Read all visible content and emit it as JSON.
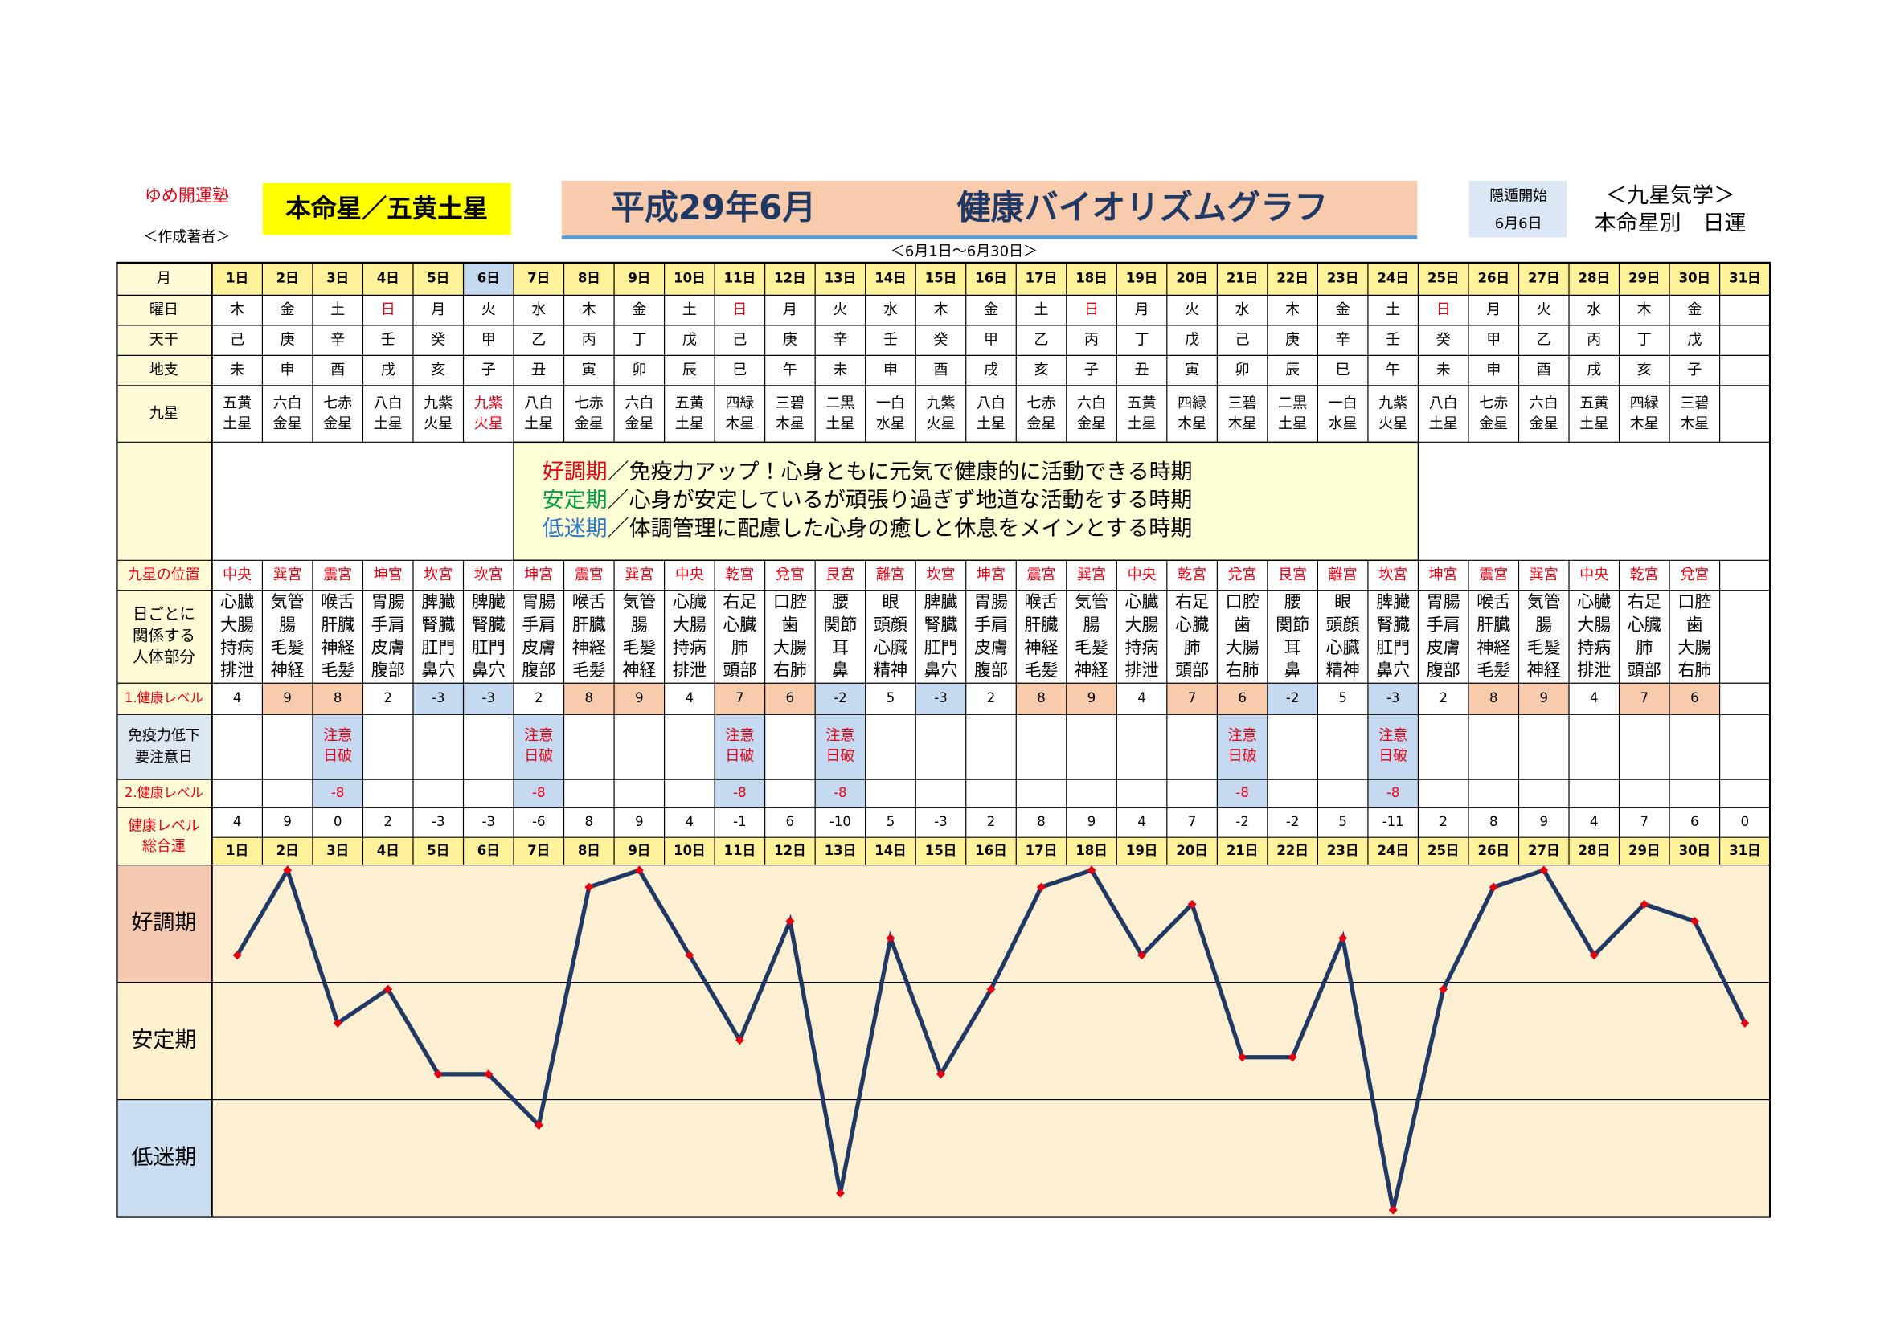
{
  "header": {
    "school": "ゆめ開運塾",
    "author": "＜作成著者＞",
    "honmei": "本命星／五黄土星",
    "title_date": "平成29年6月",
    "title": "健康バイオリズムグラフ",
    "period": "＜6月1日～6月30日＞",
    "inton_label": "隠遁開始",
    "inton_date": "6月6日",
    "kyusei_title": "＜九星気学＞",
    "kyusei_sub": "本命星別　日運"
  },
  "table": {
    "row_labels": {
      "month": "月",
      "weekday": "曜日",
      "kan": "天干",
      "shi": "地支",
      "star": "九星",
      "position": "九星の位置",
      "body": [
        "日ごとに",
        "関係する",
        "人体部分"
      ],
      "level1": "1.健康レベル",
      "immunity": [
        "免疫力低下",
        "要注意日"
      ],
      "level2": "2.健康レベル",
      "total": [
        "健康レベル",
        "総合運"
      ]
    },
    "days": [
      "1日",
      "2日",
      "3日",
      "4日",
      "5日",
      "6日",
      "7日",
      "8日",
      "9日",
      "10日",
      "11日",
      "12日",
      "13日",
      "14日",
      "15日",
      "16日",
      "17日",
      "18日",
      "19日",
      "20日",
      "21日",
      "22日",
      "23日",
      "24日",
      "25日",
      "26日",
      "27日",
      "28日",
      "29日",
      "30日",
      "31日"
    ],
    "highlight_day": 5,
    "weekdays": [
      "木",
      "金",
      "土",
      "日",
      "月",
      "火",
      "水",
      "木",
      "金",
      "土",
      "日",
      "月",
      "火",
      "水",
      "木",
      "金",
      "土",
      "日",
      "月",
      "火",
      "水",
      "木",
      "金",
      "土",
      "日",
      "月",
      "火",
      "水",
      "木",
      "金"
    ],
    "red_weekdays": [
      3,
      10,
      17,
      24
    ],
    "kan": [
      "己",
      "庚",
      "辛",
      "壬",
      "癸",
      "甲",
      "乙",
      "丙",
      "丁",
      "戊",
      "己",
      "庚",
      "辛",
      "壬",
      "癸",
      "甲",
      "乙",
      "丙",
      "丁",
      "戊",
      "己",
      "庚",
      "辛",
      "壬",
      "癸",
      "甲",
      "乙",
      "丙",
      "丁",
      "戊"
    ],
    "shi": [
      "未",
      "申",
      "酉",
      "戌",
      "亥",
      "子",
      "丑",
      "寅",
      "卯",
      "辰",
      "巳",
      "午",
      "未",
      "申",
      "酉",
      "戌",
      "亥",
      "子",
      "丑",
      "寅",
      "卯",
      "辰",
      "巳",
      "午",
      "未",
      "申",
      "酉",
      "戌",
      "亥",
      "子"
    ],
    "star": [
      [
        "五黄",
        "土星"
      ],
      [
        "六白",
        "金星"
      ],
      [
        "七赤",
        "金星"
      ],
      [
        "八白",
        "土星"
      ],
      [
        "九紫",
        "火星"
      ],
      [
        "九紫",
        "火星"
      ],
      [
        "八白",
        "土星"
      ],
      [
        "七赤",
        "金星"
      ],
      [
        "六白",
        "金星"
      ],
      [
        "五黄",
        "土星"
      ],
      [
        "四緑",
        "木星"
      ],
      [
        "三碧",
        "木星"
      ],
      [
        "二黒",
        "土星"
      ],
      [
        "一白",
        "水星"
      ],
      [
        "九紫",
        "火星"
      ],
      [
        "八白",
        "土星"
      ],
      [
        "七赤",
        "金星"
      ],
      [
        "六白",
        "金星"
      ],
      [
        "五黄",
        "土星"
      ],
      [
        "四緑",
        "木星"
      ],
      [
        "三碧",
        "木星"
      ],
      [
        "二黒",
        "土星"
      ],
      [
        "一白",
        "水星"
      ],
      [
        "九紫",
        "火星"
      ],
      [
        "八白",
        "土星"
      ],
      [
        "七赤",
        "金星"
      ],
      [
        "六白",
        "金星"
      ],
      [
        "五黄",
        "土星"
      ],
      [
        "四緑",
        "木星"
      ],
      [
        "三碧",
        "木星"
      ]
    ],
    "red_stars": [
      5
    ],
    "position": [
      "中央",
      "巽宮",
      "震宮",
      "坤宮",
      "坎宮",
      "坎宮",
      "坤宮",
      "震宮",
      "巽宮",
      "中央",
      "乾宮",
      "兌宮",
      "艮宮",
      "離宮",
      "坎宮",
      "坤宮",
      "震宮",
      "巽宮",
      "中央",
      "乾宮",
      "兌宮",
      "艮宮",
      "離宮",
      "坎宮",
      "坤宮",
      "震宮",
      "巽宮",
      "中央",
      "乾宮",
      "兌宮"
    ],
    "body": [
      [
        "心臓",
        "大腸",
        "持病",
        "排泄"
      ],
      [
        "気管",
        "腸",
        "毛髪",
        "神経"
      ],
      [
        "喉舌",
        "肝臓",
        "神経",
        "毛髪"
      ],
      [
        "胃腸",
        "手肩",
        "皮膚",
        "腹部"
      ],
      [
        "脾臓",
        "腎臓",
        "肛門",
        "鼻穴"
      ],
      [
        "脾臓",
        "腎臓",
        "肛門",
        "鼻穴"
      ],
      [
        "胃腸",
        "手肩",
        "皮膚",
        "腹部"
      ],
      [
        "喉舌",
        "肝臓",
        "神経",
        "毛髪"
      ],
      [
        "気管",
        "腸",
        "毛髪",
        "神経"
      ],
      [
        "心臓",
        "大腸",
        "持病",
        "排泄"
      ],
      [
        "右足",
        "心臓",
        "肺",
        "頭部"
      ],
      [
        "口腔",
        "歯",
        "大腸",
        "右肺"
      ],
      [
        "腰",
        "関節",
        "耳",
        "鼻"
      ],
      [
        "眼",
        "頭顔",
        "心臓",
        "精神"
      ],
      [
        "脾臓",
        "腎臓",
        "肛門",
        "鼻穴"
      ],
      [
        "胃腸",
        "手肩",
        "皮膚",
        "腹部"
      ],
      [
        "喉舌",
        "肝臓",
        "神経",
        "毛髪"
      ],
      [
        "気管",
        "腸",
        "毛髪",
        "神経"
      ],
      [
        "心臓",
        "大腸",
        "持病",
        "排泄"
      ],
      [
        "右足",
        "心臓",
        "肺",
        "頭部"
      ],
      [
        "口腔",
        "歯",
        "大腸",
        "右肺"
      ],
      [
        "腰",
        "関節",
        "耳",
        "鼻"
      ],
      [
        "眼",
        "頭顔",
        "心臓",
        "精神"
      ],
      [
        "脾臓",
        "腎臓",
        "肛門",
        "鼻穴"
      ],
      [
        "胃腸",
        "手肩",
        "皮膚",
        "腹部"
      ],
      [
        "喉舌",
        "肝臓",
        "神経",
        "毛髪"
      ],
      [
        "気管",
        "腸",
        "毛髪",
        "神経"
      ],
      [
        "心臓",
        "大腸",
        "持病",
        "排泄"
      ],
      [
        "右足",
        "心臓",
        "肺",
        "頭部"
      ],
      [
        "口腔",
        "歯",
        "大腸",
        "右肺"
      ]
    ],
    "level1": [
      4,
      9,
      8,
      2,
      -3,
      -3,
      2,
      8,
      9,
      4,
      7,
      6,
      -2,
      5,
      -3,
      2,
      8,
      9,
      4,
      7,
      6,
      -2,
      5,
      -3,
      2,
      8,
      9,
      4,
      7,
      6
    ],
    "level1_good": [
      1,
      2,
      7,
      8,
      10,
      11,
      16,
      17,
      19,
      20,
      25,
      26,
      28,
      29
    ],
    "level1_poor": [
      4,
      5,
      12,
      14,
      21,
      23
    ],
    "caution_days": [
      2,
      6,
      10,
      12,
      20,
      23
    ],
    "caution_text": [
      "注意",
      "日破"
    ],
    "level2": [
      null,
      null,
      -8,
      null,
      null,
      null,
      -8,
      null,
      null,
      null,
      -8,
      null,
      -8,
      null,
      null,
      null,
      null,
      null,
      null,
      null,
      -8,
      null,
      null,
      -8,
      null,
      null,
      null,
      null,
      null,
      null
    ],
    "colors": {
      "red": "#e60012",
      "good": "#f8cbad",
      "poor": "#c5d9f1",
      "header": "#fff29a",
      "label": "#fffbd6",
      "legend_box": "#ffffd5"
    }
  },
  "legend": [
    {
      "label": "好調期",
      "text": "／免疫力アップ！心身ともに元気で健康的に活動できる時期",
      "color": "#e60012"
    },
    {
      "label": "安定期",
      "text": "／心身が安定しているが頑張り過ぎず地道な活動をする時期",
      "color": "#00a04a"
    },
    {
      "label": "低迷期",
      "text": "／体調管理に配慮した心身の癒しと休息をメインとする時期",
      "color": "#2e75c9"
    }
  ],
  "chart_data": {
    "type": "line",
    "categories": [
      "1日",
      "2日",
      "3日",
      "4日",
      "5日",
      "6日",
      "7日",
      "8日",
      "9日",
      "10日",
      "11日",
      "12日",
      "13日",
      "14日",
      "15日",
      "16日",
      "17日",
      "18日",
      "19日",
      "20日",
      "21日",
      "22日",
      "23日",
      "24日",
      "25日",
      "26日",
      "27日",
      "28日",
      "29日",
      "30日",
      "31日"
    ],
    "values": [
      4,
      9,
      0,
      2,
      -3,
      -3,
      -6,
      8,
      9,
      4,
      -1,
      6,
      -10,
      5,
      -3,
      2,
      8,
      9,
      4,
      7,
      -2,
      -2,
      5,
      -11,
      2,
      8,
      9,
      4,
      7,
      6,
      0
    ],
    "color": "#1f3864",
    "marker_color": "#e60012",
    "ylim": [
      -11.4,
      9.3
    ],
    "bands": [
      {
        "label": "好調期",
        "color": "#f4c9b0"
      },
      {
        "label": "安定期",
        "color": "#fdf0cc"
      },
      {
        "label": "低迷期",
        "color": "#c9dcf0"
      }
    ],
    "plot_color": "#fdf0d2"
  }
}
